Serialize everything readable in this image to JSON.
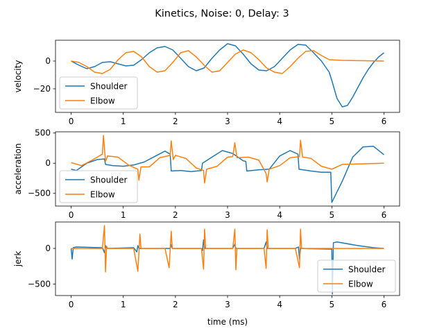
{
  "figure_title": "Kinetics, Noise: 0, Delay: 3",
  "colors": {
    "shoulder": "#1f77b4",
    "elbow": "#ff7f0e"
  },
  "chart_data": [
    {
      "type": "line",
      "ylabel": "velocity",
      "xlabel": "",
      "xlim": [
        -0.3,
        6.3
      ],
      "ylim": [
        -37,
        15
      ],
      "xticks": [
        0,
        1,
        2,
        3,
        4,
        5,
        6
      ],
      "yticks": [
        0,
        -20
      ],
      "legend": "lower-left",
      "series": [
        {
          "name": "Shoulder",
          "color": "#1f77b4",
          "x": [
            0,
            0.15,
            0.3,
            0.45,
            0.6,
            0.75,
            0.9,
            1.05,
            1.2,
            1.35,
            1.5,
            1.65,
            1.8,
            1.95,
            2.1,
            2.25,
            2.4,
            2.55,
            2.7,
            2.85,
            3.0,
            3.15,
            3.3,
            3.45,
            3.6,
            3.75,
            3.9,
            4.05,
            4.2,
            4.35,
            4.5,
            4.65,
            4.8,
            4.95,
            5.0,
            5.1,
            5.2,
            5.3,
            5.4,
            5.5,
            5.6,
            5.7,
            5.8,
            5.9,
            6.0
          ],
          "y": [
            0,
            -3,
            -5.5,
            -4,
            -1,
            -0.5,
            -2,
            -3.5,
            -3,
            1,
            6,
            9.5,
            10.5,
            8,
            2,
            -4,
            -7,
            -5,
            2,
            8,
            12.5,
            11,
            5,
            -2,
            -6.5,
            -7,
            -4,
            2,
            8,
            12,
            11.5,
            6,
            0,
            -8,
            -14,
            -27,
            -33,
            -32,
            -26,
            -19,
            -12,
            -6,
            -1,
            3,
            6
          ]
        },
        {
          "name": "Elbow",
          "color": "#ff7f0e",
          "x": [
            0,
            0.15,
            0.3,
            0.45,
            0.6,
            0.75,
            0.9,
            1.05,
            1.2,
            1.35,
            1.5,
            1.65,
            1.8,
            1.95,
            2.1,
            2.25,
            2.4,
            2.55,
            2.7,
            2.85,
            3.0,
            3.15,
            3.3,
            3.45,
            3.6,
            3.75,
            3.9,
            4.05,
            4.2,
            4.35,
            4.5,
            4.65,
            4.8,
            4.95,
            5.2,
            5.5,
            5.8,
            6.0
          ],
          "y": [
            0,
            -1,
            -4,
            -8,
            -9,
            -6,
            1,
            6,
            7,
            3,
            -4,
            -8,
            -7,
            -1,
            6,
            7.5,
            3,
            -3,
            -8,
            -7,
            -1,
            5,
            8,
            6,
            1,
            -5,
            -8,
            -9,
            -4,
            2,
            7,
            7.5,
            4,
            1,
            0.5,
            0.3,
            0.1,
            0
          ]
        }
      ]
    },
    {
      "type": "line",
      "ylabel": "acceleration",
      "xlabel": "",
      "xlim": [
        -0.3,
        6.3
      ],
      "ylim": [
        -710,
        520
      ],
      "xticks": [
        0,
        1,
        2,
        3,
        4,
        5,
        6
      ],
      "yticks": [
        500,
        0,
        -500
      ],
      "legend": "lower-left",
      "series": [
        {
          "name": "Shoulder",
          "color": "#1f77b4",
          "x": [
            0,
            0.1,
            0.3,
            0.5,
            0.64,
            0.66,
            0.8,
            1.0,
            1.2,
            1.4,
            1.6,
            1.8,
            1.9,
            1.92,
            2.1,
            2.3,
            2.5,
            2.52,
            2.7,
            2.9,
            3.1,
            3.3,
            3.35,
            3.37,
            3.6,
            3.8,
            4.0,
            4.2,
            4.35,
            4.37,
            4.6,
            4.8,
            4.98,
            5.0,
            5.2,
            5.4,
            5.6,
            5.8,
            6.0
          ],
          "y": [
            -100,
            -120,
            0,
            60,
            70,
            -20,
            -40,
            -50,
            -30,
            20,
            110,
            200,
            150,
            -130,
            -120,
            -140,
            -120,
            0,
            100,
            210,
            160,
            40,
            30,
            -130,
            -110,
            -100,
            120,
            210,
            150,
            -100,
            -130,
            -150,
            -150,
            -650,
            -300,
            100,
            270,
            280,
            140
          ]
        },
        {
          "name": "Elbow",
          "color": "#ff7f0e",
          "x": [
            0,
            0.2,
            0.4,
            0.6,
            0.62,
            0.66,
            0.7,
            0.9,
            1.1,
            1.28,
            1.3,
            1.34,
            1.5,
            1.7,
            1.9,
            1.92,
            1.96,
            2.0,
            2.2,
            2.4,
            2.54,
            2.56,
            2.6,
            2.8,
            3.0,
            3.1,
            3.14,
            3.18,
            3.4,
            3.6,
            3.74,
            3.76,
            3.8,
            4.0,
            4.2,
            4.38,
            4.4,
            4.44,
            4.6,
            4.8,
            5.0,
            5.2,
            5.6,
            6.0
          ],
          "y": [
            10,
            -40,
            50,
            150,
            460,
            30,
            120,
            100,
            -30,
            -100,
            -280,
            -60,
            -60,
            90,
            130,
            370,
            60,
            130,
            80,
            -80,
            -120,
            -330,
            -100,
            -50,
            100,
            110,
            340,
            90,
            100,
            50,
            -170,
            -310,
            -100,
            -40,
            90,
            110,
            380,
            100,
            80,
            -50,
            -100,
            -20,
            -10,
            0
          ]
        }
      ]
    },
    {
      "type": "line",
      "ylabel": "jerk",
      "xlabel": "time (ms)",
      "xlim": [
        -0.3,
        6.3
      ],
      "ylim": [
        -660,
        370
      ],
      "xticks": [
        0,
        1,
        2,
        3,
        4,
        5,
        6
      ],
      "yticks": [
        0,
        -500
      ],
      "legend": "lower-right",
      "series": [
        {
          "name": "Shoulder",
          "color": "#1f77b4",
          "x": [
            0,
            0.02,
            0.04,
            0.1,
            0.6,
            0.64,
            0.66,
            0.68,
            1.2,
            1.26,
            1.28,
            1.3,
            1.9,
            1.92,
            1.94,
            2.5,
            2.52,
            2.54,
            2.56,
            3.1,
            3.14,
            3.16,
            3.7,
            3.74,
            3.76,
            4.3,
            4.36,
            4.38,
            4.4,
            5.0,
            5.01,
            5.03,
            5.1,
            5.5,
            5.8,
            6.0
          ],
          "y": [
            0,
            -150,
            10,
            20,
            10,
            -60,
            40,
            0,
            10,
            -50,
            40,
            0,
            0,
            50,
            0,
            0,
            -30,
            120,
            0,
            0,
            60,
            0,
            0,
            90,
            0,
            0,
            20,
            -150,
            0,
            -10,
            -640,
            80,
            90,
            40,
            10,
            0
          ]
        },
        {
          "name": "Elbow",
          "color": "#ff7f0e",
          "x": [
            0,
            0.6,
            0.64,
            0.66,
            0.68,
            0.7,
            1.2,
            1.28,
            1.32,
            1.34,
            1.8,
            1.88,
            1.92,
            1.94,
            2.5,
            2.54,
            2.56,
            2.58,
            3.1,
            3.14,
            3.16,
            3.18,
            3.7,
            3.74,
            3.76,
            3.78,
            4.3,
            4.38,
            4.4,
            4.42,
            5.0,
            6.0
          ],
          "y": [
            0,
            0,
            320,
            -330,
            30,
            0,
            0,
            -320,
            200,
            0,
            0,
            -270,
            240,
            0,
            0,
            -290,
            270,
            0,
            0,
            270,
            -300,
            0,
            0,
            -280,
            260,
            0,
            0,
            -270,
            270,
            0,
            0,
            0
          ]
        }
      ]
    }
  ]
}
